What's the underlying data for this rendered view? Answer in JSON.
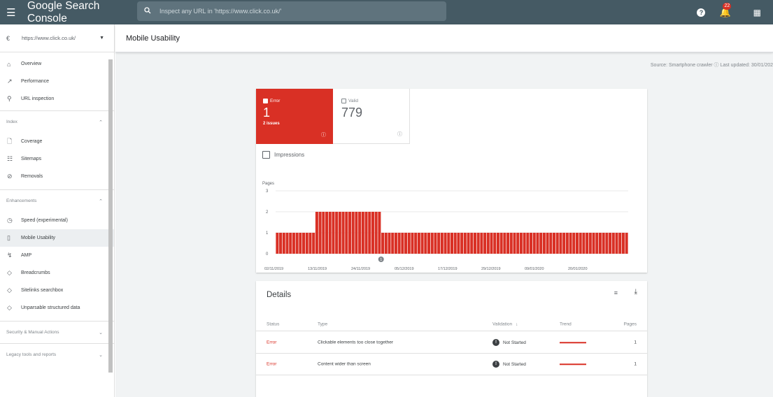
{
  "topbar": {
    "app_title": "Google Search Console",
    "search_placeholder": "Inspect any URL in 'https://www.click.co.uk/'",
    "notifications_count": "22"
  },
  "sidebar": {
    "property": "https://www.click.co.uk/",
    "top_items": [
      {
        "label": "Overview",
        "icon": "home-icon"
      },
      {
        "label": "Performance",
        "icon": "trending-icon"
      },
      {
        "label": "URL inspection",
        "icon": "search-icon"
      }
    ],
    "index_section": "Index",
    "index_items": [
      {
        "label": "Coverage",
        "icon": "file-icon"
      },
      {
        "label": "Sitemaps",
        "icon": "sitemap-icon"
      },
      {
        "label": "Removals",
        "icon": "visibility-off-icon"
      }
    ],
    "enh_section": "Enhancements",
    "enh_items": [
      {
        "label": "Speed (experimental)",
        "icon": "speed-icon"
      },
      {
        "label": "Mobile Usability",
        "icon": "phone-icon"
      },
      {
        "label": "AMP",
        "icon": "bolt-icon"
      },
      {
        "label": "Breadcrumbs",
        "icon": "layers-icon"
      },
      {
        "label": "Sitelinks searchbox",
        "icon": "layers-icon"
      },
      {
        "label": "Unparsable structured data",
        "icon": "layers-icon"
      }
    ],
    "security_section": "Security & Manual Actions",
    "legacy_section": "Legacy tools and reports"
  },
  "header": {
    "title": "Mobile Usability"
  },
  "source_line": "Source: Smartphone crawler ⓘ   Last updated: 30/01/202",
  "tiles": {
    "error_label": "Error",
    "error_value": "1",
    "error_sub": "2 issues",
    "valid_label": "Valid",
    "valid_value": "779"
  },
  "impressions_label": "Impressions",
  "chart_data": {
    "type": "bar",
    "ylabel": "Pages",
    "ylim": [
      0,
      3
    ],
    "yticks": [
      0,
      1,
      2,
      3
    ],
    "xtick_labels": [
      "02/11/2019",
      "13/11/2019",
      "24/11/2019",
      "05/12/2019",
      "17/12/2019",
      "29/12/2019",
      "09/01/2020",
      "20/01/2020"
    ],
    "values": [
      1,
      1,
      1,
      1,
      1,
      1,
      1,
      1,
      1,
      1,
      1,
      1,
      2,
      2,
      2,
      2,
      2,
      2,
      2,
      2,
      2,
      2,
      2,
      2,
      2,
      2,
      2,
      2,
      2,
      2,
      2,
      2,
      1,
      1,
      1,
      1,
      1,
      1,
      1,
      1,
      1,
      1,
      1,
      1,
      1,
      1,
      1,
      1,
      1,
      1,
      1,
      1,
      1,
      1,
      1,
      1,
      1,
      1,
      1,
      1,
      1,
      1,
      1,
      1,
      1,
      1,
      1,
      1,
      1,
      1,
      1,
      1,
      1,
      1,
      1,
      1,
      1,
      1,
      1,
      1,
      1,
      1,
      1,
      1,
      1,
      1,
      1,
      1,
      1,
      1,
      1,
      1,
      1,
      1,
      1,
      1,
      1,
      1,
      1,
      1,
      1,
      1,
      1,
      1,
      1,
      1,
      1
    ],
    "annotation": "1",
    "color": "#d93025"
  },
  "details": {
    "title": "Details",
    "columns": [
      "Status",
      "Type",
      "Validation",
      "Trend",
      "Pages"
    ],
    "rows": [
      {
        "status": "Error",
        "type": "Clickable elements too close together",
        "validation": "Not Started",
        "pages": "1"
      },
      {
        "status": "Error",
        "type": "Content wider than screen",
        "validation": "Not Started",
        "pages": "1"
      }
    ]
  }
}
